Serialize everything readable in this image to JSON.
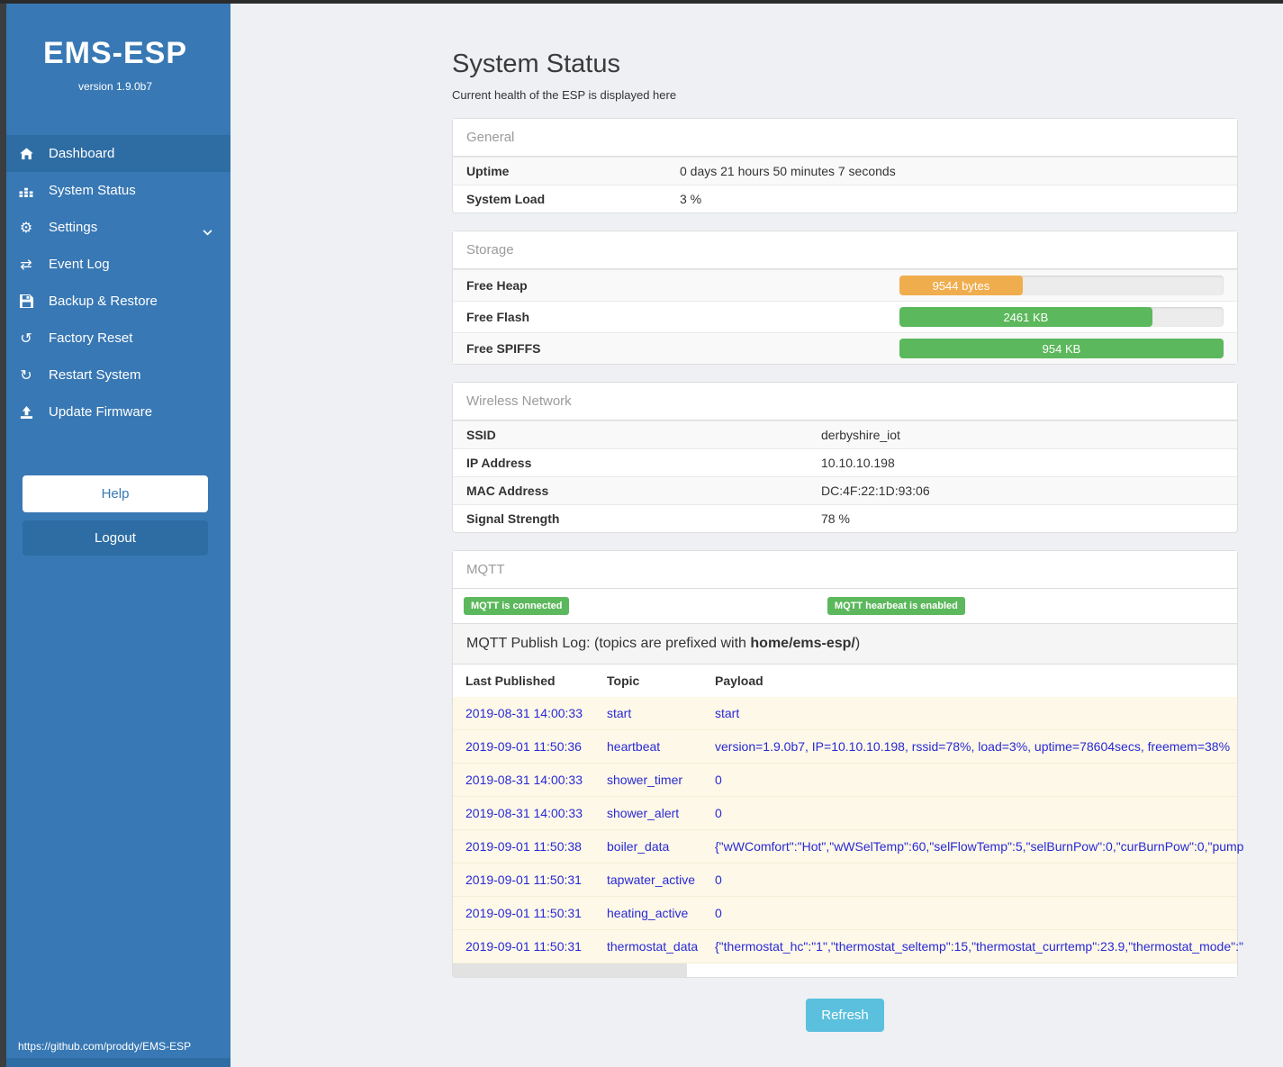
{
  "app": {
    "title": "EMS-ESP",
    "version": "version 1.9.0b7",
    "footer_link": "https://github.com/proddy/EMS-ESP"
  },
  "sidebar": {
    "items": [
      {
        "label": "Dashboard",
        "icon": "home-icon"
      },
      {
        "label": "System Status",
        "icon": "status-icon"
      },
      {
        "label": "Settings",
        "icon": "gear-icon"
      },
      {
        "label": "Event Log",
        "icon": "exchange-icon"
      },
      {
        "label": "Backup & Restore",
        "icon": "save-icon"
      },
      {
        "label": "Factory Reset",
        "icon": "rotate-icon"
      },
      {
        "label": "Restart System",
        "icon": "refresh-icon"
      },
      {
        "label": "Update Firmware",
        "icon": "upload-icon"
      }
    ],
    "help_label": "Help",
    "logout_label": "Logout"
  },
  "page": {
    "title": "System Status",
    "subtitle": "Current health of the ESP is displayed here",
    "refresh_label": "Refresh"
  },
  "general": {
    "header": "General",
    "rows": [
      {
        "label": "Uptime",
        "value": "0 days 21 hours 50 minutes 7 seconds"
      },
      {
        "label": "System Load",
        "value": "3 %"
      }
    ]
  },
  "storage": {
    "header": "Storage",
    "rows": [
      {
        "label": "Free Heap",
        "value": "9544 bytes",
        "percent": 38,
        "color": "#f0ad4e"
      },
      {
        "label": "Free Flash",
        "value": "2461 KB",
        "percent": 78,
        "color": "#5cb85c"
      },
      {
        "label": "Free SPIFFS",
        "value": "954 KB",
        "percent": 100,
        "color": "#5cb85c"
      }
    ]
  },
  "wireless": {
    "header": "Wireless Network",
    "rows": [
      {
        "label": "SSID",
        "value": "derbyshire_iot"
      },
      {
        "label": "IP Address",
        "value": "10.10.10.198"
      },
      {
        "label": "MAC Address",
        "value": "DC:4F:22:1D:93:06"
      },
      {
        "label": "Signal Strength",
        "value": "78 %"
      }
    ]
  },
  "mqtt": {
    "header": "MQTT",
    "badge_connected": "MQTT is connected",
    "badge_heartbeat": "MQTT hearbeat is enabled",
    "publog_prefix": "MQTT Publish Log: (topics are prefixed with ",
    "publog_bold": "home/ems-esp/",
    "publog_suffix": ")",
    "table": {
      "headers": {
        "time": "Last Published",
        "topic": "Topic",
        "payload": "Payload"
      },
      "rows": [
        {
          "time": "2019-08-31 14:00:33",
          "topic": "start",
          "payload": "start"
        },
        {
          "time": "2019-09-01 11:50:36",
          "topic": "heartbeat",
          "payload": "version=1.9.0b7, IP=10.10.10.198, rssid=78%, load=3%, uptime=78604secs, freemem=38%"
        },
        {
          "time": "2019-08-31 14:00:33",
          "topic": "shower_timer",
          "payload": "0"
        },
        {
          "time": "2019-08-31 14:00:33",
          "topic": "shower_alert",
          "payload": "0"
        },
        {
          "time": "2019-09-01 11:50:38",
          "topic": "boiler_data",
          "payload": "{\"wWComfort\":\"Hot\",\"wWSelTemp\":60,\"selFlowTemp\":5,\"selBurnPow\":0,\"curBurnPow\":0,\"pump"
        },
        {
          "time": "2019-09-01 11:50:31",
          "topic": "tapwater_active",
          "payload": "0"
        },
        {
          "time": "2019-09-01 11:50:31",
          "topic": "heating_active",
          "payload": "0"
        },
        {
          "time": "2019-09-01 11:50:31",
          "topic": "thermostat_data",
          "payload": "{\"thermostat_hc\":\"1\",\"thermostat_seltemp\":15,\"thermostat_currtemp\":23.9,\"thermostat_mode\":\""
        }
      ]
    }
  },
  "colors": {
    "sidebar": "#3878b4",
    "sidebar_active": "#2e6da4",
    "badge_green": "#5cb85c",
    "bar_orange": "#f0ad4e",
    "bar_green": "#5cb85c",
    "refresh_blue": "#5bc0de",
    "log_row_bg": "#fdf8e7",
    "log_text_blue": "#2929d6"
  }
}
